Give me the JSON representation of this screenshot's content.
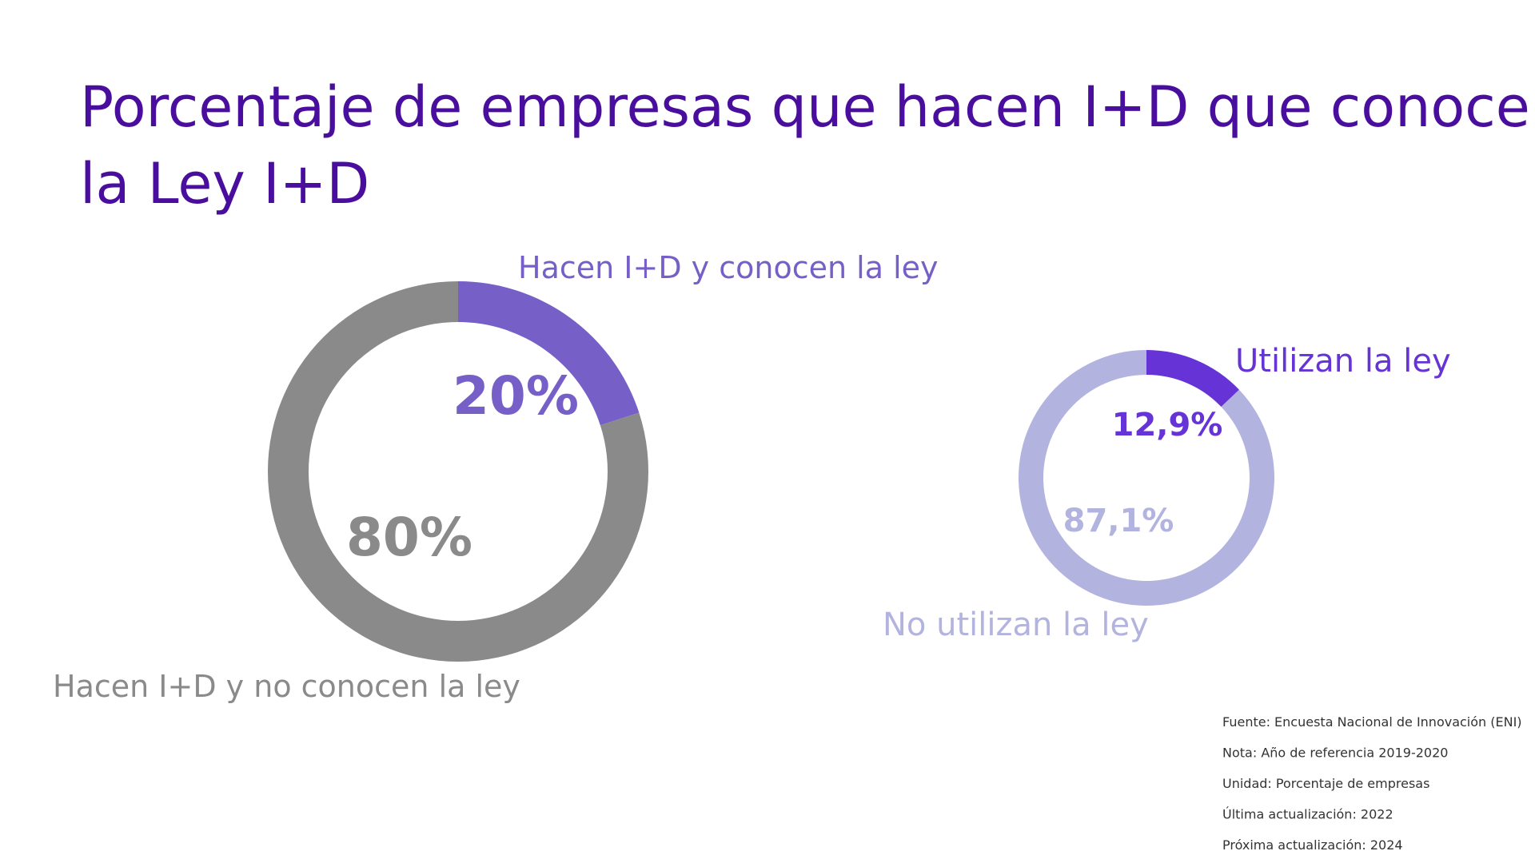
{
  "title": "Porcentaje de empresas que hacen I+D que conocen la Ley I+D",
  "chart_data": [
    {
      "type": "pie",
      "categories": [
        "Hacen I+D y conocen la ley",
        "Hacen I+D y no conocen la ley"
      ],
      "values": [
        20,
        80
      ],
      "value_labels": [
        "20%",
        "80%"
      ],
      "colors": [
        "#7660c8",
        "#8a8a8a"
      ]
    },
    {
      "type": "pie",
      "categories": [
        "Utilizan la ley",
        "No utilizan la ley"
      ],
      "values": [
        12.9,
        87.1
      ],
      "value_labels": [
        "12,9%",
        "87,1%"
      ],
      "colors": [
        "#6633d6",
        "#b3b3e0"
      ]
    }
  ],
  "footnotes": [
    "Fuente: Encuesta Nacional de Innovación (ENI)",
    "Nota: Año de referencia 2019-2020",
    "Unidad: Porcentaje de empresas",
    "Última actualización: 2022",
    "Próxima actualización: 2024"
  ]
}
